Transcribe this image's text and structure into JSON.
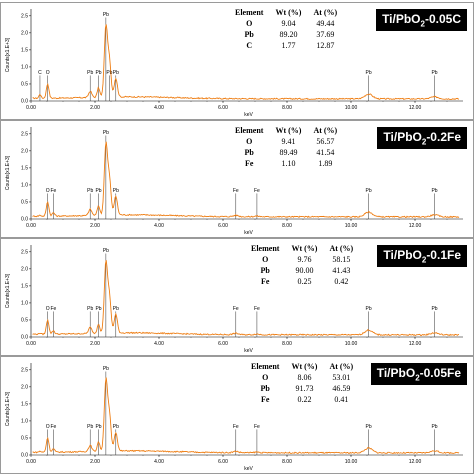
{
  "chart_data": [
    {
      "type": "line",
      "label": "Ti/PbO2-0.05C",
      "table": {
        "headers": [
          "Element",
          "Wt (%)",
          "At (%)"
        ],
        "rows": [
          [
            "O",
            "9.04",
            "49.44"
          ],
          [
            "Pb",
            "89.20",
            "37.69"
          ],
          [
            "C",
            "1.77",
            "12.87"
          ]
        ]
      },
      "peak_labels": [
        {
          "text": "C",
          "x": 0.28,
          "tall": false
        },
        {
          "text": "O",
          "x": 0.52,
          "tall": false
        },
        {
          "text": "Pb",
          "x": 1.85,
          "tall": false
        },
        {
          "text": "Pb",
          "x": 2.11,
          "tall": false
        },
        {
          "text": "Pb",
          "x": 2.34,
          "tall": true
        },
        {
          "text": "Pb",
          "x": 2.45,
          "tall": false
        },
        {
          "text": "Pb",
          "x": 2.65,
          "tall": false
        },
        {
          "text": "Pb",
          "x": 10.55,
          "tall": false
        },
        {
          "text": "Pb",
          "x": 12.61,
          "tall": false
        }
      ]
    },
    {
      "type": "line",
      "label": "Ti/PbO2-0.2Fe",
      "table": {
        "headers": [
          "Element",
          "Wt (%)",
          "At (%)"
        ],
        "rows": [
          [
            "O",
            "9.41",
            "56.57"
          ],
          [
            "Pb",
            "89.49",
            "41.54"
          ],
          [
            "Fe",
            "1.10",
            "1.89"
          ]
        ]
      },
      "peak_labels": [
        {
          "text": "O",
          "x": 0.52,
          "tall": false
        },
        {
          "text": "Fe",
          "x": 0.7,
          "tall": false
        },
        {
          "text": "Pb",
          "x": 1.85,
          "tall": false
        },
        {
          "text": "Pb",
          "x": 2.11,
          "tall": false
        },
        {
          "text": "Pb",
          "x": 2.34,
          "tall": true
        },
        {
          "text": "Pb",
          "x": 2.65,
          "tall": false
        },
        {
          "text": "Fe",
          "x": 6.4,
          "tall": false
        },
        {
          "text": "Fe",
          "x": 7.06,
          "tall": false
        },
        {
          "text": "Pb",
          "x": 10.55,
          "tall": false
        },
        {
          "text": "Pb",
          "x": 12.61,
          "tall": false
        }
      ]
    },
    {
      "type": "line",
      "label": "Ti/PbO2-0.1Fe",
      "table": {
        "headers": [
          "Element",
          "Wt (%)",
          "At (%)"
        ],
        "rows": [
          [
            "O",
            "9.76",
            "58.15"
          ],
          [
            "Pb",
            "90.00",
            "41.43"
          ],
          [
            "Fe",
            "0.25",
            "0.42"
          ]
        ]
      },
      "peak_labels": [
        {
          "text": "O",
          "x": 0.52,
          "tall": false
        },
        {
          "text": "Fe",
          "x": 0.7,
          "tall": false
        },
        {
          "text": "Pb",
          "x": 1.85,
          "tall": false
        },
        {
          "text": "Pb",
          "x": 2.11,
          "tall": false
        },
        {
          "text": "Pb",
          "x": 2.34,
          "tall": true
        },
        {
          "text": "Pb",
          "x": 2.65,
          "tall": false
        },
        {
          "text": "Fe",
          "x": 6.4,
          "tall": false
        },
        {
          "text": "Fe",
          "x": 7.06,
          "tall": false
        },
        {
          "text": "Pb",
          "x": 10.55,
          "tall": false
        },
        {
          "text": "Pb",
          "x": 12.61,
          "tall": false
        }
      ]
    },
    {
      "type": "line",
      "label": "Ti/PbO2-0.05Fe",
      "table": {
        "headers": [
          "Element",
          "Wt (%)",
          "At (%)"
        ],
        "rows": [
          [
            "O",
            "8.06",
            "53.01"
          ],
          [
            "Pb",
            "91.73",
            "46.59"
          ],
          [
            "Fe",
            "0.22",
            "0.41"
          ]
        ]
      },
      "peak_labels": [
        {
          "text": "O",
          "x": 0.52,
          "tall": false
        },
        {
          "text": "Fe",
          "x": 0.7,
          "tall": false
        },
        {
          "text": "Pb",
          "x": 1.85,
          "tall": false
        },
        {
          "text": "Pb",
          "x": 2.11,
          "tall": false
        },
        {
          "text": "Pb",
          "x": 2.34,
          "tall": true
        },
        {
          "text": "Pb",
          "x": 2.65,
          "tall": false
        },
        {
          "text": "Fe",
          "x": 6.4,
          "tall": false
        },
        {
          "text": "Fe",
          "x": 7.06,
          "tall": false
        },
        {
          "text": "Pb",
          "x": 10.55,
          "tall": false
        },
        {
          "text": "Pb",
          "x": 12.61,
          "tall": false
        }
      ]
    }
  ],
  "axes": {
    "xlabel": "keV",
    "ylabel": "Counts[x1.E+3]",
    "xlim": [
      0,
      13.5
    ],
    "xticks": [
      "0.00",
      "2.00",
      "4.00",
      "6.00",
      "8.00",
      "10.00",
      "12.00"
    ],
    "yticks": [
      "0.0",
      "0.5",
      "1.0",
      "1.5",
      "2.0",
      "2.5"
    ],
    "ylim": [
      0,
      2.7
    ]
  },
  "colors": {
    "spectrum": "#ee7d12",
    "peak_marker": "#333333"
  }
}
